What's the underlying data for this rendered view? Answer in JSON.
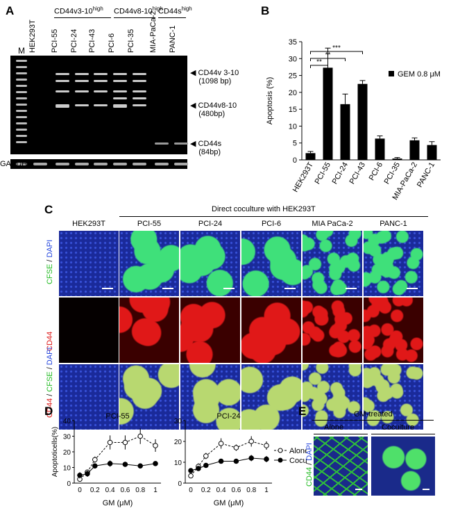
{
  "panelA": {
    "letter": "A",
    "marker": "M",
    "lanes": [
      "HEK293T",
      "PCI-55",
      "PCI-24",
      "PCI-43",
      "PCI-6",
      "PCI-35",
      "MIA-PaCa-2",
      "PANC-1"
    ],
    "groups": [
      {
        "label": "CD44v3-10",
        "sup": "high"
      },
      {
        "label": "CD44v8-10",
        "sup": "high"
      },
      {
        "label": "CD44s",
        "sup": "high"
      }
    ],
    "bands": [
      {
        "name": "CD44v 3-10",
        "size": "(1098 bp)"
      },
      {
        "name": "CD44v8-10",
        "size": "(480bp)"
      },
      {
        "name": "CD44s",
        "size": "(84bp)"
      }
    ],
    "loading_control": "GAPDH"
  },
  "panelB": {
    "letter": "B",
    "chart_data": {
      "type": "bar",
      "categories": [
        "HEK293T",
        "PCI-55",
        "PCI-24",
        "PCI-43",
        "PCI-6",
        "PCI-35",
        "MIA-PaCa-2",
        "PANC-1"
      ],
      "series": [
        {
          "name": "GEM 0.8 μM",
          "values": [
            2.0,
            27.3,
            16.5,
            22.5,
            6.3,
            0.4,
            5.8,
            4.4
          ],
          "errors": [
            0.5,
            5.8,
            3.0,
            1.0,
            0.8,
            0.3,
            0.7,
            1.0
          ],
          "color": "#000000"
        }
      ],
      "ylabel": "Apoptosis (%)",
      "ylim": [
        0,
        35
      ],
      "yticks": [
        0,
        5,
        10,
        15,
        20,
        25,
        30,
        35
      ],
      "legend_position": "top-right",
      "significance": [
        "**",
        "**",
        "***"
      ]
    }
  },
  "panelC": {
    "letter": "C",
    "header": "Direct coculture with HEK293T",
    "columns": [
      "HEK293T",
      "PCI-55",
      "PCI-24",
      "PCI-6",
      "MIA PaCa-2",
      "PANC-1"
    ],
    "rows": [
      {
        "parts": [
          {
            "t": "CFSE",
            "c": "#22bb22"
          },
          {
            "t": " / ",
            "c": "#000000"
          },
          {
            "t": "DAPI",
            "c": "#2244dd"
          }
        ]
      },
      {
        "parts": [
          {
            "t": "CD44",
            "c": "#dd1111"
          }
        ]
      },
      {
        "parts": [
          {
            "t": "CD44",
            "c": "#dd1111"
          },
          {
            "t": " / ",
            "c": "#000000"
          },
          {
            "t": "CFSE",
            "c": "#22bb22"
          },
          {
            "t": " / ",
            "c": "#000000"
          },
          {
            "t": "DAPI",
            "c": "#2244dd"
          }
        ]
      }
    ]
  },
  "panelD": {
    "letter": "D",
    "chart_data": [
      {
        "type": "line",
        "title": "PCI-55",
        "x": [
          0,
          0.1,
          0.2,
          0.4,
          0.6,
          0.8,
          1.0
        ],
        "series": [
          {
            "name": "Alone",
            "values": [
              2.5,
              7,
              15,
              26,
              26,
              30,
              24
            ],
            "errors": [
              1,
              1.5,
              2,
              4.5,
              4.5,
              5,
              4
            ]
          },
          {
            "name": "Coculture",
            "values": [
              5,
              6,
              11,
              12.5,
              12,
              11,
              12.5
            ],
            "errors": [
              2,
              2,
              1.5,
              2,
              1.5,
              1.5,
              1.5
            ]
          }
        ],
        "xlabel": "GM (μM)",
        "ylabel": "Apoptoticells(%)",
        "ylim": [
          0,
          40
        ],
        "yticks": [
          0,
          10,
          20,
          30,
          40
        ],
        "xticks": [
          "0",
          "0.2",
          "0.4",
          "0.6",
          "0.8",
          "1"
        ]
      },
      {
        "type": "line",
        "title": "PCI-24",
        "x": [
          0,
          0.1,
          0.2,
          0.4,
          0.6,
          0.8,
          1.0
        ],
        "series": [
          {
            "name": "Alone",
            "values": [
              3.5,
              8,
              13,
              19,
              17,
              20,
              18
            ],
            "errors": [
              1,
              1.5,
              1.5,
              2.5,
              1.5,
              2.5,
              2
            ]
          },
          {
            "name": "Coculture",
            "values": [
              6,
              7,
              8.5,
              10.5,
              10.5,
              12,
              11.5
            ],
            "errors": [
              1,
              1,
              1,
              1,
              1,
              1.5,
              1.5
            ]
          }
        ],
        "xlabel": "GM (μM)",
        "ylim": [
          0,
          30
        ],
        "yticks": [
          0,
          10,
          20,
          30
        ],
        "xticks": [
          "0",
          "0.2",
          "0.4",
          "0.6",
          "0.8",
          "1"
        ]
      }
    ],
    "legend": [
      "Alone",
      "Coculture"
    ]
  },
  "panelE": {
    "letter": "E",
    "header": "GM-treated",
    "columns": [
      "Alone",
      "Coculture"
    ],
    "ylabel_parts": [
      {
        "t": "CD44",
        "c": "#22bb22"
      },
      {
        "t": " / ",
        "c": "#000000"
      },
      {
        "t": "DAPI",
        "c": "#2244dd"
      }
    ]
  }
}
